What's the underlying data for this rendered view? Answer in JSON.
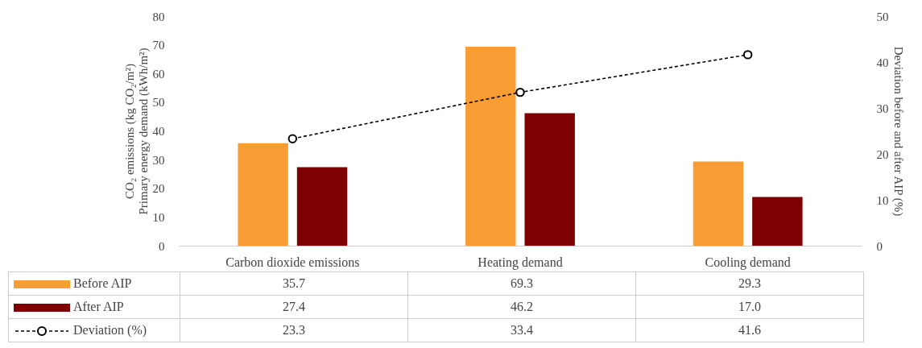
{
  "chart_data": {
    "type": "bar",
    "categories": [
      "Carbon dioxide emissions",
      "Heating demand",
      "Cooling demand"
    ],
    "ylabel": "CO₂ emissions (kg CO₂/m²)\nPrimary energy demand (kWh/m²)",
    "y2label": "Deviation before and after AIP (%)",
    "ylim": [
      0,
      80
    ],
    "yticks": [
      0,
      10,
      20,
      30,
      40,
      50,
      60,
      70,
      80
    ],
    "y2lim": [
      0,
      50
    ],
    "y2ticks": [
      0,
      10,
      20,
      30,
      40,
      50
    ],
    "series": [
      {
        "name": "Before AIP",
        "color": "#f89c34",
        "values": [
          35.7,
          69.3,
          29.3
        ],
        "value_labels": [
          "35.7",
          "69.3",
          "29.3"
        ]
      },
      {
        "name": "After AIP",
        "color": "#7f0000",
        "values": [
          27.4,
          46.2,
          17.0
        ],
        "value_labels": [
          "27.4",
          "46.2",
          "17.0"
        ]
      },
      {
        "name": "Deviation (%)",
        "type": "line",
        "axis": "y2",
        "color": "#000000",
        "marker": "circle",
        "line_style": "dashed",
        "values": [
          23.3,
          33.4,
          41.6
        ],
        "value_labels": [
          "23.3",
          "33.4",
          "41.6"
        ]
      }
    ],
    "legend": "bottom",
    "grid": false
  }
}
